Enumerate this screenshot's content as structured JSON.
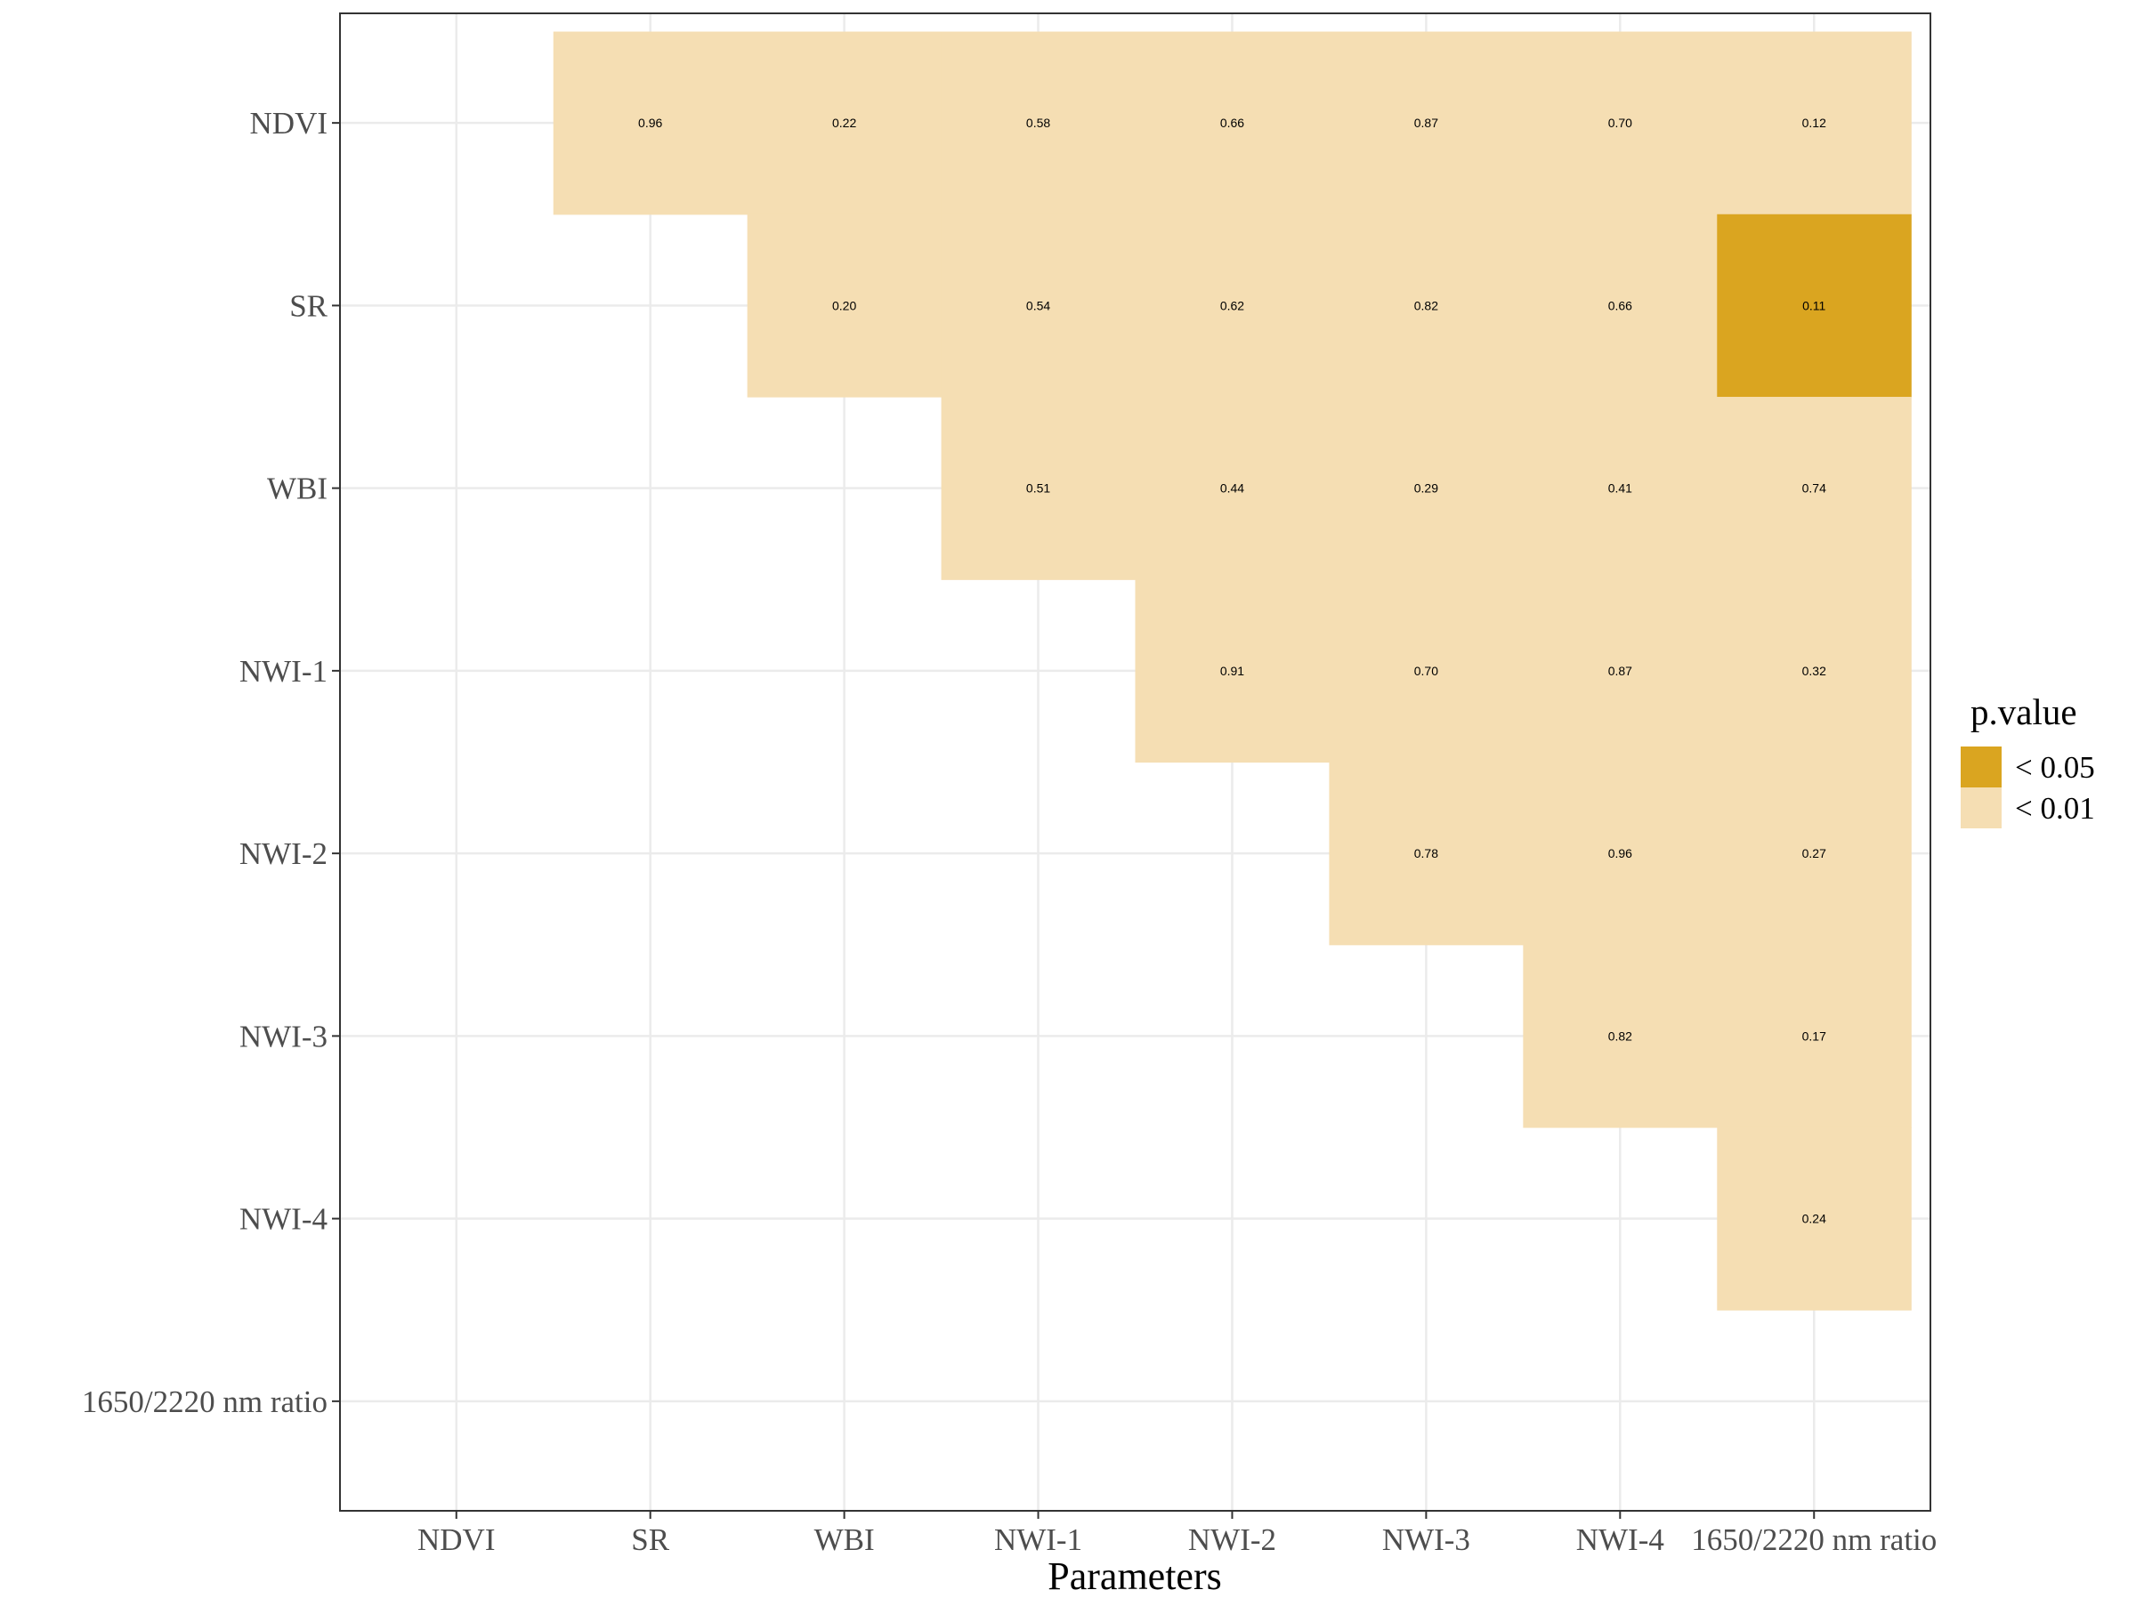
{
  "chart_data": {
    "type": "heatmap",
    "xlabel": "Parameters",
    "ylabel": "",
    "x_categories": [
      "NDVI",
      "SR",
      "WBI",
      "NWI-1",
      "NWI-2",
      "NWI-3",
      "NWI-4",
      "1650/2220 nm ratio"
    ],
    "y_categories": [
      "NDVI",
      "SR",
      "WBI",
      "NWI-1",
      "NWI-2",
      "NWI-3",
      "NWI-4",
      "1650/2220 nm ratio"
    ],
    "cells": [
      {
        "x": "SR",
        "y": "NDVI",
        "label": "0.96",
        "p": "< 0.01"
      },
      {
        "x": "WBI",
        "y": "NDVI",
        "label": "0.22",
        "p": "< 0.01"
      },
      {
        "x": "NWI-1",
        "y": "NDVI",
        "label": "0.58",
        "p": "< 0.01"
      },
      {
        "x": "NWI-2",
        "y": "NDVI",
        "label": "0.66",
        "p": "< 0.01"
      },
      {
        "x": "NWI-3",
        "y": "NDVI",
        "label": "0.87",
        "p": "< 0.01"
      },
      {
        "x": "NWI-4",
        "y": "NDVI",
        "label": "0.70",
        "p": "< 0.01"
      },
      {
        "x": "1650/2220 nm ratio",
        "y": "NDVI",
        "label": "0.12",
        "p": "< 0.01"
      },
      {
        "x": "WBI",
        "y": "SR",
        "label": "0.20",
        "p": "< 0.01"
      },
      {
        "x": "NWI-1",
        "y": "SR",
        "label": "0.54",
        "p": "< 0.01"
      },
      {
        "x": "NWI-2",
        "y": "SR",
        "label": "0.62",
        "p": "< 0.01"
      },
      {
        "x": "NWI-3",
        "y": "SR",
        "label": "0.82",
        "p": "< 0.01"
      },
      {
        "x": "NWI-4",
        "y": "SR",
        "label": "0.66",
        "p": "< 0.01"
      },
      {
        "x": "1650/2220 nm ratio",
        "y": "SR",
        "label": "0.11",
        "p": "< 0.05"
      },
      {
        "x": "NWI-1",
        "y": "WBI",
        "label": "0.51",
        "p": "< 0.01"
      },
      {
        "x": "NWI-2",
        "y": "WBI",
        "label": "0.44",
        "p": "< 0.01"
      },
      {
        "x": "NWI-3",
        "y": "WBI",
        "label": "0.29",
        "p": "< 0.01"
      },
      {
        "x": "NWI-4",
        "y": "WBI",
        "label": "0.41",
        "p": "< 0.01"
      },
      {
        "x": "1650/2220 nm ratio",
        "y": "WBI",
        "label": "0.74",
        "p": "< 0.01"
      },
      {
        "x": "NWI-2",
        "y": "NWI-1",
        "label": "0.91",
        "p": "< 0.01"
      },
      {
        "x": "NWI-3",
        "y": "NWI-1",
        "label": "0.70",
        "p": "< 0.01"
      },
      {
        "x": "NWI-4",
        "y": "NWI-1",
        "label": "0.87",
        "p": "< 0.01"
      },
      {
        "x": "1650/2220 nm ratio",
        "y": "NWI-1",
        "label": "0.32",
        "p": "< 0.01"
      },
      {
        "x": "NWI-3",
        "y": "NWI-2",
        "label": "0.78",
        "p": "< 0.01"
      },
      {
        "x": "NWI-4",
        "y": "NWI-2",
        "label": "0.96",
        "p": "< 0.01"
      },
      {
        "x": "1650/2220 nm ratio",
        "y": "NWI-2",
        "label": "0.27",
        "p": "< 0.01"
      },
      {
        "x": "NWI-4",
        "y": "NWI-3",
        "label": "0.82",
        "p": "< 0.01"
      },
      {
        "x": "1650/2220 nm ratio",
        "y": "NWI-3",
        "label": "0.17",
        "p": "< 0.01"
      },
      {
        "x": "1650/2220 nm ratio",
        "y": "NWI-4",
        "label": "0.24",
        "p": "< 0.01"
      }
    ],
    "legend": {
      "title": "p.value",
      "placement": "right",
      "entries": [
        {
          "label": "< 0.05",
          "color": "#DAA520"
        },
        {
          "label": "< 0.01",
          "color": "#F5DEB3"
        }
      ]
    },
    "grid": true
  }
}
